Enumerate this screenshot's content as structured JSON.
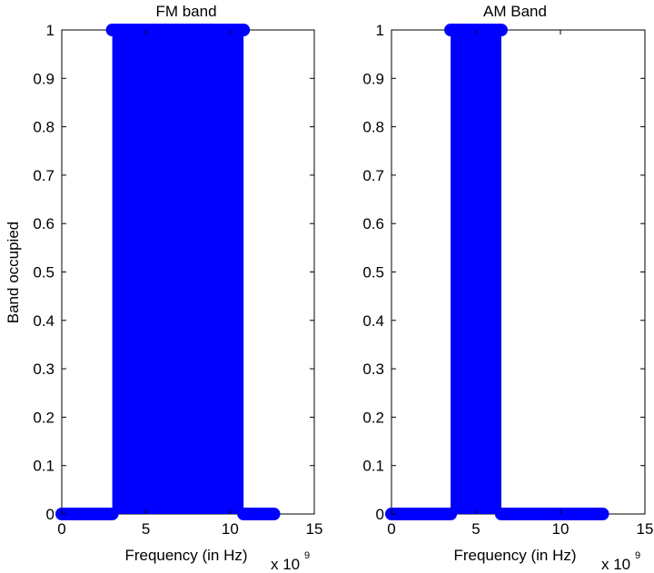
{
  "chart_data": [
    {
      "type": "line",
      "title": "FM band",
      "xlabel": "Frequency (in Hz)",
      "ylabel": "Band occupied",
      "x_scale_label": "x 10",
      "x_scale_exponent": "9",
      "xlim": [
        0,
        15
      ],
      "ylim": [
        0,
        1
      ],
      "xticks": [
        0,
        5,
        10,
        15
      ],
      "yticks": [
        0,
        0.1,
        0.2,
        0.3,
        0.4,
        0.5,
        0.6,
        0.7,
        0.8,
        0.9,
        1
      ],
      "xticklabels": [
        "0",
        "5",
        "10",
        "15"
      ],
      "yticklabels": [
        "0",
        "0.1",
        "0.2",
        "0.3",
        "0.4",
        "0.5",
        "0.6",
        "0.7",
        "0.8",
        "0.9",
        "1"
      ],
      "marker": "filled circle",
      "grid": false,
      "color": "#0000ff",
      "series": [
        {
          "segments": [
            {
              "x_start": 0,
              "x_end": 3,
              "y": 0
            },
            {
              "x_start": 10.8,
              "x_end": 12.6,
              "y": 0
            },
            {
              "x_start": 3,
              "x_end": 10.8,
              "y": 1
            }
          ],
          "filled_band": {
            "x_start": 3,
            "x_end": 10.8
          }
        }
      ]
    },
    {
      "type": "line",
      "title": "AM Band",
      "xlabel": "Frequency (in Hz)",
      "ylabel": "",
      "x_scale_label": "x 10",
      "x_scale_exponent": "9",
      "xlim": [
        0,
        15
      ],
      "ylim": [
        0,
        1
      ],
      "xticks": [
        0,
        5,
        10,
        15
      ],
      "yticks": [
        0,
        0.1,
        0.2,
        0.3,
        0.4,
        0.5,
        0.6,
        0.7,
        0.8,
        0.9,
        1
      ],
      "xticklabels": [
        "0",
        "5",
        "10",
        "15"
      ],
      "yticklabels": [
        "0",
        "0.1",
        "0.2",
        "0.3",
        "0.4",
        "0.5",
        "0.6",
        "0.7",
        "0.8",
        "0.9",
        "1"
      ],
      "marker": "filled circle",
      "grid": false,
      "color": "#0000ff",
      "series": [
        {
          "segments": [
            {
              "x_start": 0,
              "x_end": 3.5,
              "y": 0
            },
            {
              "x_start": 6.5,
              "x_end": 12.5,
              "y": 0
            },
            {
              "x_start": 3.5,
              "x_end": 6.5,
              "y": 1
            }
          ],
          "filled_band": {
            "x_start": 3.5,
            "x_end": 6.5
          }
        }
      ]
    }
  ]
}
